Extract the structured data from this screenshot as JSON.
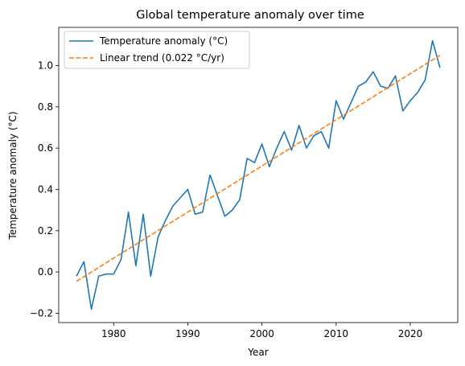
{
  "chart_data": {
    "type": "line",
    "title": "Global temperature anomaly over time",
    "xlabel": "Year",
    "ylabel": "Temperature anomaly (°C)",
    "xlim": [
      1972.6,
      2026.4
    ],
    "ylim": [
      -0.245,
      1.185
    ],
    "x_ticks": [
      1980,
      1990,
      2000,
      2010,
      2020
    ],
    "y_ticks": [
      -0.2,
      0.0,
      0.2,
      0.4,
      0.6,
      0.8,
      1.0
    ],
    "y_tick_labels": [
      "−0.2",
      "0.0",
      "0.2",
      "0.4",
      "0.6",
      "0.8",
      "1.0"
    ],
    "grid": false,
    "legend_position": "upper-left",
    "series": [
      {
        "name": "Temperature anomaly (°C)",
        "color": "#1f77b4",
        "style": "solid",
        "x": [
          1975,
          1976,
          1977,
          1978,
          1979,
          1980,
          1981,
          1982,
          1983,
          1984,
          1985,
          1986,
          1987,
          1988,
          1989,
          1990,
          1991,
          1992,
          1993,
          1994,
          1995,
          1996,
          1997,
          1998,
          1999,
          2000,
          2001,
          2002,
          2003,
          2004,
          2005,
          2006,
          2007,
          2008,
          2009,
          2010,
          2011,
          2012,
          2013,
          2014,
          2015,
          2016,
          2017,
          2018,
          2019,
          2020,
          2021,
          2022,
          2023,
          2024
        ],
        "y": [
          -0.02,
          0.05,
          -0.18,
          -0.02,
          -0.01,
          -0.01,
          0.06,
          0.29,
          0.03,
          0.28,
          -0.02,
          0.17,
          0.25,
          0.32,
          0.36,
          0.4,
          0.28,
          0.29,
          0.47,
          0.37,
          0.27,
          0.3,
          0.35,
          0.55,
          0.53,
          0.62,
          0.51,
          0.6,
          0.68,
          0.59,
          0.71,
          0.6,
          0.66,
          0.68,
          0.6,
          0.83,
          0.74,
          0.82,
          0.9,
          0.92,
          0.97,
          0.9,
          0.89,
          0.95,
          0.78,
          0.83,
          0.87,
          0.93,
          1.12,
          0.99
        ]
      },
      {
        "name": "Linear trend (0.022 °C/yr)",
        "color": "#ff7f0e",
        "style": "dashed",
        "x": [
          1975,
          2024
        ],
        "y": [
          -0.045,
          1.05
        ]
      }
    ]
  }
}
